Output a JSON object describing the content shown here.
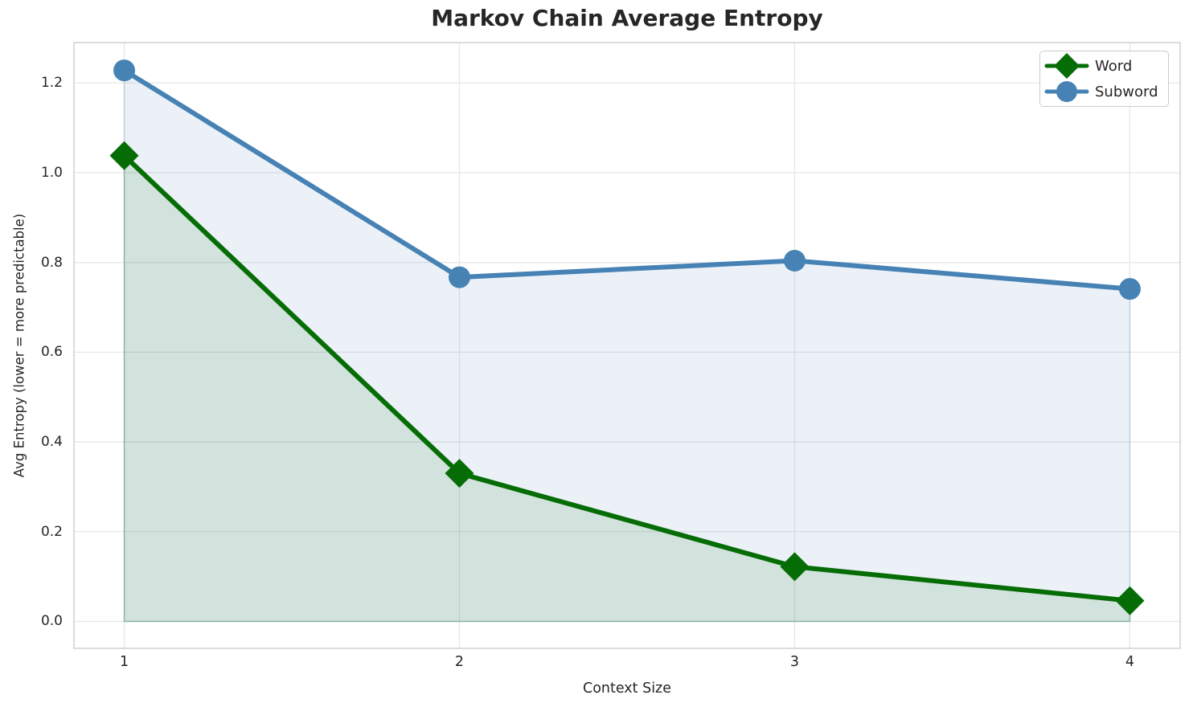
{
  "figure": {
    "background": "#ffffff",
    "text_color": "#262626",
    "grid_color": "#e7e7e7",
    "spine_color": "#cccccc"
  },
  "chart_data": {
    "type": "line",
    "title": "Markov Chain Average Entropy",
    "xlabel": "Context Size",
    "ylabel": "Avg Entropy (lower = more predictable)",
    "x": [
      1,
      2,
      3,
      4
    ],
    "series": [
      {
        "name": "Word",
        "values": [
          1.038,
          0.33,
          0.122,
          0.046
        ],
        "color": "#066d06",
        "marker": "diamond"
      },
      {
        "name": "Subword",
        "values": [
          1.228,
          0.767,
          0.804,
          0.741
        ],
        "color": "#4682b4",
        "marker": "circle"
      }
    ],
    "xticks": [
      "1",
      "2",
      "3",
      "4"
    ],
    "yticks": [
      "0.0",
      "0.2",
      "0.4",
      "0.6",
      "0.8",
      "1.0",
      "1.2"
    ],
    "xlim": [
      0.85,
      4.15
    ],
    "ylim": [
      -0.06,
      1.29
    ],
    "grid": true,
    "legend_position": "upper right",
    "fill_baseline": 0,
    "fill_opacity": 0.11,
    "line_width": 6
  }
}
